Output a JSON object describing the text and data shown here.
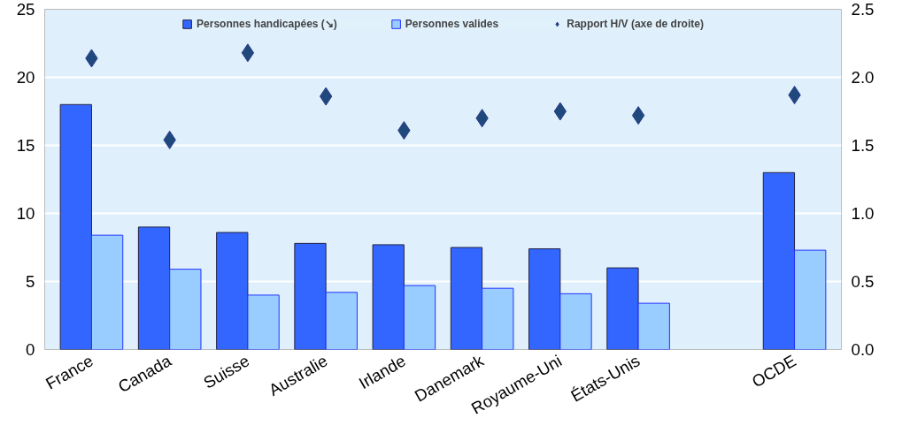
{
  "chart_data": {
    "type": "bar",
    "categories": [
      "France",
      "Canada",
      "Suisse",
      "Australie",
      "Irlande",
      "Danemark",
      "Royaume-Uni",
      "États-Unis",
      null,
      "OCDE"
    ],
    "series": [
      {
        "name": "Personnes handicapées (↘)",
        "color": "#3366ff",
        "values": [
          18.0,
          9.0,
          8.6,
          7.8,
          7.7,
          7.5,
          7.4,
          6.0,
          null,
          13.0
        ]
      },
      {
        "name": "Personnes valides",
        "color": "#99ccff",
        "values": [
          8.4,
          5.9,
          4.0,
          4.2,
          4.7,
          4.5,
          4.1,
          3.4,
          null,
          7.3
        ]
      },
      {
        "name": "Rapport H/V (axe de droite)",
        "type": "scatter",
        "axis": "y2",
        "marker": "diamond",
        "color": "#1f497d",
        "values": [
          2.14,
          1.54,
          2.18,
          1.86,
          1.61,
          1.7,
          1.75,
          1.72,
          null,
          1.87
        ]
      }
    ],
    "ylim": [
      0,
      25
    ],
    "yticks": [
      0,
      5,
      10,
      15,
      20,
      25
    ],
    "y2lim": [
      0,
      2.5
    ],
    "y2ticks": [
      {
        "value": 0,
        "label": "0.0"
      },
      {
        "value": 0.5,
        "label": "0.5"
      },
      {
        "value": 1,
        "label": "1.0"
      },
      {
        "value": 1.5,
        "label": "1.5"
      },
      {
        "value": 2,
        "label": "2.0"
      },
      {
        "value": 2.5,
        "label": "2.5"
      }
    ],
    "grid": "y",
    "legend": "top"
  }
}
